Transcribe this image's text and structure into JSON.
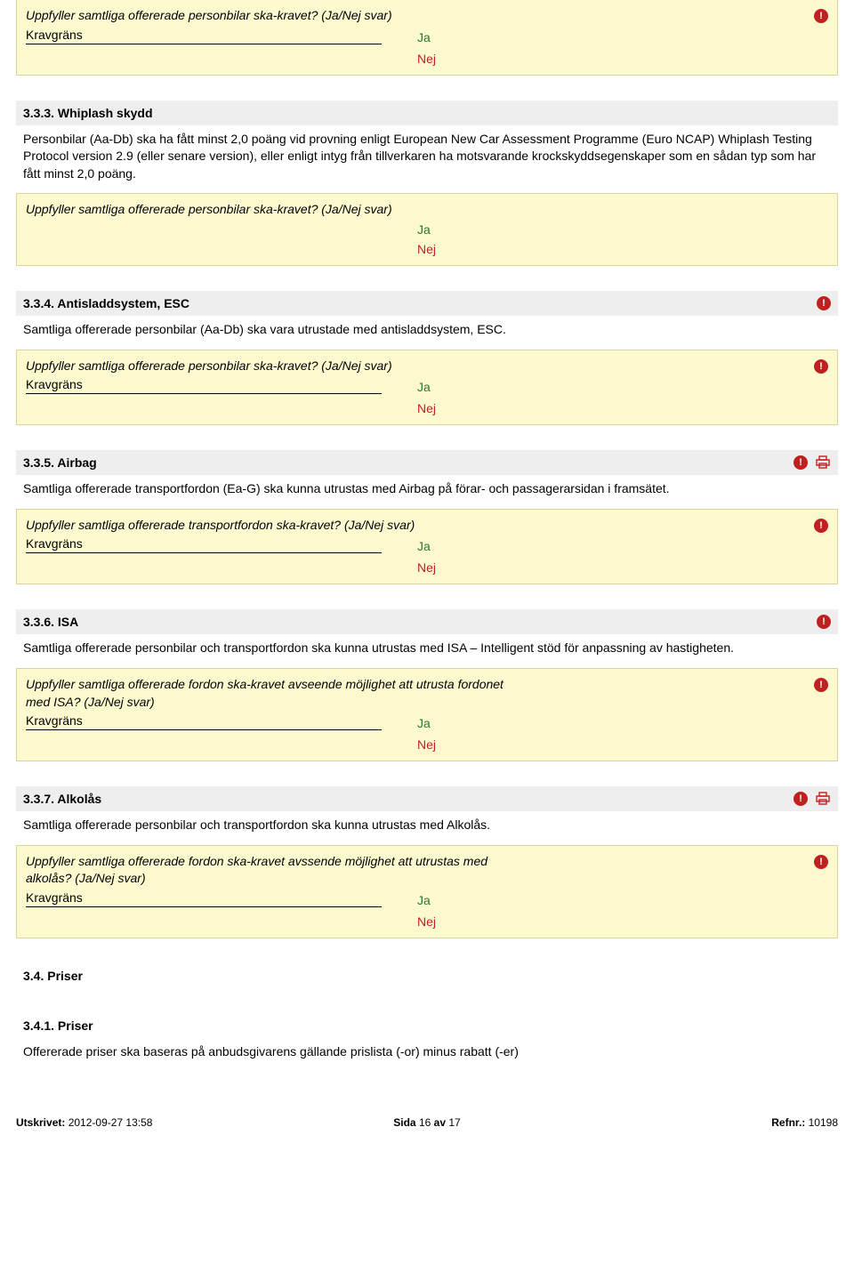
{
  "colors": {
    "header_bg": "#eeeeee",
    "box_bg": "#fdf9cf",
    "box_border": "#d9d49a",
    "ja": "#2a7a2a",
    "nej": "#c02020",
    "alert_bg": "#c02020",
    "print_stroke": "#c02020",
    "text": "#000000"
  },
  "labels": {
    "kravgrans": "Kravgräns",
    "ja": "Ja",
    "nej": "Nej",
    "alert_glyph": "!",
    "sida": "Sida",
    "av": "av"
  },
  "sections": [
    {
      "key": "s0",
      "header": null,
      "body": null,
      "question": "Uppfyller samtliga offererade personbilar ska-kravet? (Ja/Nej svar)",
      "has_krav": true,
      "box_alert": true
    },
    {
      "key": "s333",
      "header": "3.3.3. Whiplash skydd",
      "header_alert": false,
      "header_print": false,
      "body": "Personbilar (Aa-Db) ska ha fått minst 2,0 poäng vid provning enligt European New Car Assessment Programme (Euro NCAP) Whiplash Testing Protocol version 2.9 (eller senare version), eller enligt intyg från tillverkaren ha motsvarande krockskyddsegenskaper som en sådan typ som har fått minst 2,0 poäng.",
      "question": "Uppfyller samtliga offererade personbilar ska-kravet? (Ja/Nej svar)",
      "has_krav": false,
      "box_alert": false
    },
    {
      "key": "s334",
      "header": "3.3.4. Antisladdsystem, ESC",
      "header_alert": true,
      "header_print": false,
      "body": "Samtliga offererade personbilar (Aa-Db) ska vara utrustade med antisladdsystem, ESC.",
      "question": "Uppfyller samtliga offererade personbilar ska-kravet? (Ja/Nej svar)",
      "has_krav": true,
      "box_alert": true
    },
    {
      "key": "s335",
      "header": "3.3.5. Airbag",
      "header_alert": true,
      "header_print": true,
      "body": "Samtliga offererade transportfordon (Ea-G) ska kunna utrustas med Airbag på förar- och passagerarsidan i framsätet.",
      "question": "Uppfyller samtliga offererade transportfordon ska-kravet? (Ja/Nej svar)",
      "has_krav": true,
      "box_alert": true
    },
    {
      "key": "s336",
      "header": "3.3.6. ISA",
      "header_alert": true,
      "header_print": false,
      "body": "Samtliga offererade personbilar och transportfordon ska kunna utrustas med ISA – Intelligent stöd för anpassning av hastigheten.",
      "question": "Uppfyller samtliga offererade fordon ska-kravet avseende möjlighet att utrusta fordonet med ISA? (Ja/Nej svar)",
      "has_krav": true,
      "box_alert": true
    },
    {
      "key": "s337",
      "header": "3.3.7. Alkolås",
      "header_alert": true,
      "header_print": true,
      "body": "Samtliga offererade personbilar och transportfordon ska kunna utrustas med Alkolås.",
      "question": "Uppfyller samtliga offererade fordon ska-kravet avssende möjlighet att utrustas med alkolås? (Ja/Nej svar)",
      "has_krav": true,
      "box_alert": true
    }
  ],
  "plain_headings": [
    {
      "key": "h34",
      "text": "3.4. Priser"
    },
    {
      "key": "h341",
      "text": "3.4.1. Priser"
    }
  ],
  "plain_body": "Offererade priser ska baseras på anbudsgivarens gällande prislista (-or) minus rabatt (-er)",
  "footer": {
    "utskrivet_label": "Utskrivet:",
    "utskrivet_value": "2012-09-27 13:58",
    "page_current": "16",
    "page_total": "17",
    "refnr_label": "Refnr.:",
    "refnr_value": "10198"
  }
}
